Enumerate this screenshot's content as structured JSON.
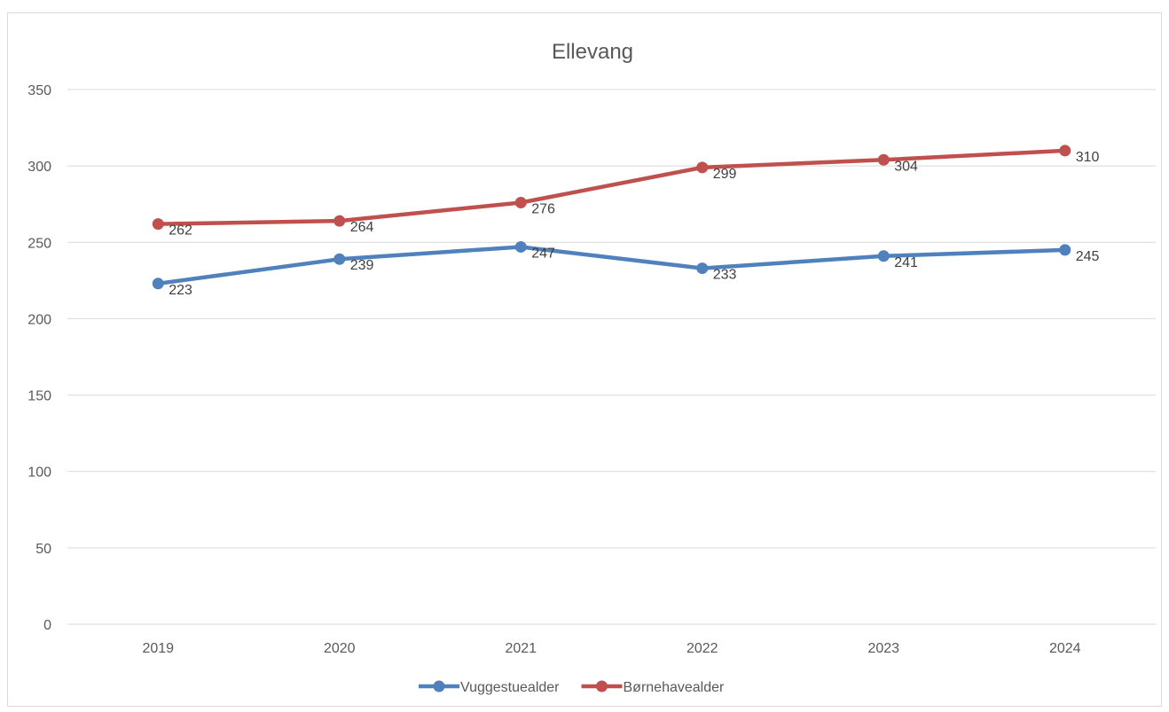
{
  "chart_data": {
    "type": "line",
    "title": "Ellevang",
    "categories": [
      "2019",
      "2020",
      "2021",
      "2022",
      "2023",
      "2024"
    ],
    "ylim": [
      0,
      350
    ],
    "yticks": [
      0,
      50,
      100,
      150,
      200,
      250,
      300,
      350
    ],
    "grid": true,
    "legend_position": "bottom",
    "series": [
      {
        "name": "Vuggestuealder",
        "color": "#4f81bd",
        "values": [
          223,
          239,
          247,
          233,
          241,
          245
        ]
      },
      {
        "name": "Børnehavealder",
        "color": "#c0504d",
        "values": [
          262,
          264,
          276,
          299,
          304,
          310
        ]
      }
    ]
  }
}
